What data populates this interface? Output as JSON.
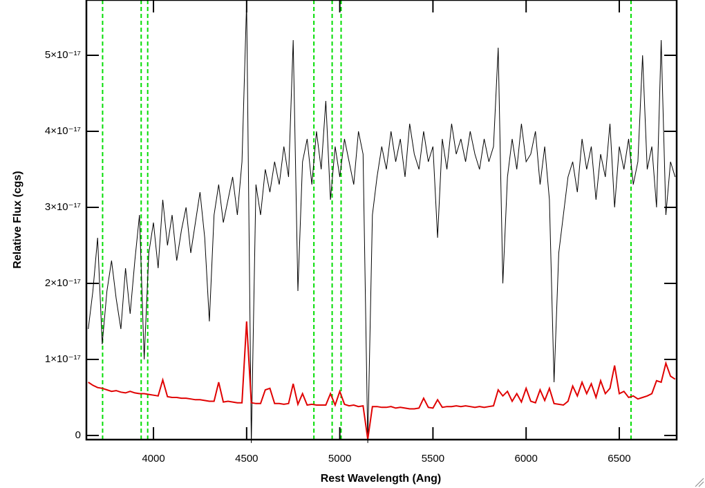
{
  "chart_data": {
    "type": "line",
    "xlabel": "Rest Wavelength (Ang)",
    "ylabel": "Relative Flux (cgs)",
    "xlim": [
      3640,
      6808
    ],
    "ylim": [
      -5.5e-19,
      5.727e-17
    ],
    "xticks": [
      4000,
      4500,
      5000,
      5500,
      6000,
      6500
    ],
    "yticks": [
      0,
      {
        "value": 1e-17,
        "label": "1×10⁻¹⁷"
      },
      {
        "value": 2e-17,
        "label": "2×10⁻¹⁷"
      },
      {
        "value": 3e-17,
        "label": "3×10⁻¹⁷"
      },
      {
        "value": 4e-17,
        "label": "4×10⁻¹⁷"
      },
      {
        "value": 5e-17,
        "label": "5×10⁻¹⁷"
      }
    ],
    "vlines": {
      "color": "#00dd00",
      "x": [
        3727,
        3934,
        3969,
        4861,
        4959,
        5007,
        6563
      ]
    },
    "x": [
      3650,
      3675,
      3700,
      3725,
      3750,
      3775,
      3800,
      3825,
      3850,
      3875,
      3900,
      3925,
      3950,
      3975,
      4000,
      4025,
      4050,
      4075,
      4100,
      4125,
      4150,
      4175,
      4200,
      4225,
      4250,
      4275,
      4300,
      4325,
      4350,
      4375,
      4400,
      4425,
      4450,
      4475,
      4500,
      4525,
      4550,
      4575,
      4600,
      4625,
      4650,
      4675,
      4700,
      4725,
      4750,
      4775,
      4800,
      4825,
      4850,
      4875,
      4900,
      4925,
      4950,
      4975,
      5000,
      5025,
      5050,
      5075,
      5100,
      5125,
      5150,
      5175,
      5200,
      5225,
      5250,
      5275,
      5300,
      5325,
      5350,
      5375,
      5400,
      5425,
      5450,
      5475,
      5500,
      5525,
      5550,
      5575,
      5600,
      5625,
      5650,
      5675,
      5700,
      5725,
      5750,
      5775,
      5800,
      5825,
      5850,
      5875,
      5900,
      5925,
      5950,
      5975,
      6000,
      6025,
      6050,
      6075,
      6100,
      6125,
      6150,
      6175,
      6200,
      6225,
      6250,
      6275,
      6300,
      6325,
      6350,
      6375,
      6400,
      6425,
      6450,
      6475,
      6500,
      6525,
      6550,
      6575,
      6600,
      6625,
      6650,
      6675,
      6700,
      6725,
      6750,
      6775,
      6800
    ],
    "series": [
      {
        "color": "#000000",
        "values": [
          1.4e-17,
          1.9e-17,
          2.6e-17,
          1.2e-17,
          1.9e-17,
          2.3e-17,
          1.8e-17,
          1.4e-17,
          2.2e-17,
          1.6e-17,
          2.3e-17,
          2.9e-17,
          1e-17,
          2.4e-17,
          2.8e-17,
          2.2e-17,
          3.1e-17,
          2.5e-17,
          2.9e-17,
          2.3e-17,
          2.7e-17,
          3e-17,
          2.4e-17,
          2.8e-17,
          3.2e-17,
          2.6e-17,
          1.5e-17,
          2.9e-17,
          3.3e-17,
          2.8e-17,
          3.1e-17,
          3.4e-17,
          2.9e-17,
          3.6e-17,
          5.7e-17,
          -1e-18,
          3.3e-17,
          2.9e-17,
          3.5e-17,
          3.2e-17,
          3.6e-17,
          3.3e-17,
          3.8e-17,
          3.4e-17,
          5.2e-17,
          1.9e-17,
          3.6e-17,
          3.9e-17,
          3.3e-17,
          4e-17,
          3.5e-17,
          4.4e-17,
          3.1e-17,
          3.8e-17,
          3.4e-17,
          3.9e-17,
          3.6e-17,
          3.3e-17,
          4e-17,
          3.7e-17,
          -1e-18,
          2.9e-17,
          3.4e-17,
          3.8e-17,
          3.5e-17,
          4e-17,
          3.6e-17,
          3.9e-17,
          3.4e-17,
          4.1e-17,
          3.7e-17,
          3.5e-17,
          4e-17,
          3.6e-17,
          3.8e-17,
          2.6e-17,
          3.9e-17,
          3.5e-17,
          4.1e-17,
          3.7e-17,
          3.9e-17,
          3.6e-17,
          4e-17,
          3.7e-17,
          3.5e-17,
          3.9e-17,
          3.6e-17,
          3.8e-17,
          5.1e-17,
          2e-17,
          3.4e-17,
          3.9e-17,
          3.5e-17,
          4.1e-17,
          3.6e-17,
          3.7e-17,
          4e-17,
          3.3e-17,
          3.8e-17,
          3.1e-17,
          7e-18,
          2.4e-17,
          2.9e-17,
          3.4e-17,
          3.6e-17,
          3.2e-17,
          3.9e-17,
          3.5e-17,
          3.8e-17,
          3.1e-17,
          3.7e-17,
          3.4e-17,
          4.1e-17,
          3e-17,
          3.8e-17,
          3.5e-17,
          3.9e-17,
          3.3e-17,
          3.6e-17,
          5e-17,
          3.5e-17,
          3.8e-17,
          3e-17,
          5.2e-17,
          2.9e-17,
          3.6e-17,
          3.4e-17
        ]
      },
      {
        "color": "#e00000",
        "values": [
          7e-18,
          6.6e-18,
          6.3e-18,
          6.2e-18,
          6e-18,
          5.8e-18,
          5.9e-18,
          5.7e-18,
          5.6e-18,
          5.8e-18,
          5.6e-18,
          5.5e-18,
          5.5e-18,
          5.4e-18,
          5.3e-18,
          5.2e-18,
          7.3e-18,
          5.1e-18,
          5e-18,
          5e-18,
          4.9e-18,
          4.9e-18,
          4.8e-18,
          4.7e-18,
          4.7e-18,
          4.6e-18,
          4.5e-18,
          4.5e-18,
          7e-18,
          4.4e-18,
          4.5e-18,
          4.4e-18,
          4.3e-18,
          4.3e-18,
          1.5e-17,
          4.3e-18,
          4.2e-18,
          4.2e-18,
          6e-18,
          6.2e-18,
          4.2e-18,
          4.2e-18,
          4.1e-18,
          4.2e-18,
          6.8e-18,
          4.1e-18,
          5.5e-18,
          4e-18,
          4.1e-18,
          4e-18,
          4e-18,
          4e-18,
          5.5e-18,
          4e-18,
          5.8e-18,
          4.1e-18,
          3.9e-18,
          4e-18,
          3.8e-18,
          3.9e-18,
          -5e-19,
          3.8e-18,
          3.8e-18,
          3.7e-18,
          3.7e-18,
          3.8e-18,
          3.6e-18,
          3.7e-18,
          3.6e-18,
          3.5e-18,
          3.5e-18,
          3.6e-18,
          4.9e-18,
          3.7e-18,
          3.6e-18,
          4.7e-18,
          3.7e-18,
          3.8e-18,
          3.8e-18,
          3.9e-18,
          3.8e-18,
          3.9e-18,
          3.8e-18,
          3.7e-18,
          3.8e-18,
          3.7e-18,
          3.8e-18,
          3.9e-18,
          6e-18,
          5.2e-18,
          5.8e-18,
          4.5e-18,
          5.5e-18,
          4.4e-18,
          6.2e-18,
          4.5e-18,
          4.3e-18,
          6e-18,
          4.6e-18,
          6.2e-18,
          4.2e-18,
          4.1e-18,
          4e-18,
          4.5e-18,
          6.5e-18,
          5.2e-18,
          7e-18,
          5.5e-18,
          6.8e-18,
          5e-18,
          7.2e-18,
          5.5e-18,
          6.2e-18,
          9.2e-18,
          5.5e-18,
          5.8e-18,
          5e-18,
          5.2e-18,
          4.8e-18,
          5e-18,
          5.2e-18,
          5.5e-18,
          7.2e-18,
          7e-18,
          9.5e-18,
          7.8e-18,
          7.4e-18
        ]
      }
    ]
  }
}
